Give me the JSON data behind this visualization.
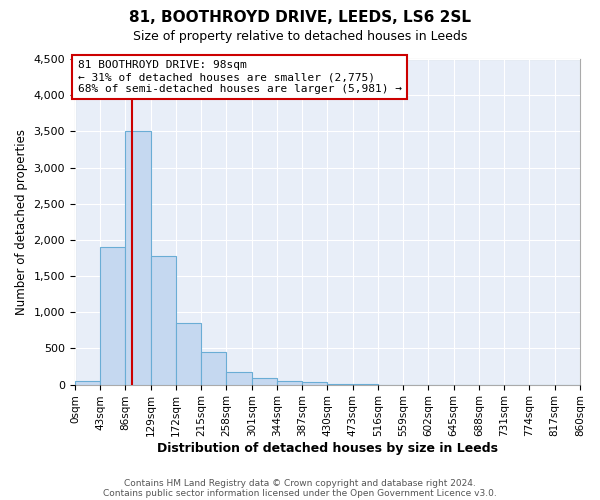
{
  "title": "81, BOOTHROYD DRIVE, LEEDS, LS6 2SL",
  "subtitle": "Size of property relative to detached houses in Leeds",
  "xlabel": "Distribution of detached houses by size in Leeds",
  "ylabel": "Number of detached properties",
  "bin_edges": [
    0,
    43,
    86,
    129,
    172,
    215,
    258,
    301,
    344,
    387,
    430,
    473,
    516,
    559,
    602,
    645,
    688,
    731,
    774,
    817,
    860
  ],
  "bin_counts": [
    50,
    1900,
    3500,
    1775,
    850,
    450,
    175,
    90,
    55,
    30,
    15,
    5,
    0,
    0,
    0,
    0,
    0,
    0,
    0,
    0
  ],
  "bar_color": "#c5d8f0",
  "bar_edge_color": "#6aadd5",
  "vline_color": "#cc0000",
  "vline_x": 98,
  "annotation_line1": "81 BOOTHROYD DRIVE: 98sqm",
  "annotation_line2": "← 31% of detached houses are smaller (2,775)",
  "annotation_line3": "68% of semi-detached houses are larger (5,981) →",
  "annotation_box_color": "#ffffff",
  "annotation_box_edge_color": "#cc0000",
  "ylim": [
    0,
    4500
  ],
  "yticks": [
    0,
    500,
    1000,
    1500,
    2000,
    2500,
    3000,
    3500,
    4000,
    4500
  ],
  "tick_labels": [
    "0sqm",
    "43sqm",
    "86sqm",
    "129sqm",
    "172sqm",
    "215sqm",
    "258sqm",
    "301sqm",
    "344sqm",
    "387sqm",
    "430sqm",
    "473sqm",
    "516sqm",
    "559sqm",
    "602sqm",
    "645sqm",
    "688sqm",
    "731sqm",
    "774sqm",
    "817sqm",
    "860sqm"
  ],
  "footer1": "Contains HM Land Registry data © Crown copyright and database right 2024.",
  "footer2": "Contains public sector information licensed under the Open Government Licence v3.0.",
  "background_color": "#ffffff",
  "plot_bg_color": "#e8eef8",
  "grid_color": "#ffffff"
}
